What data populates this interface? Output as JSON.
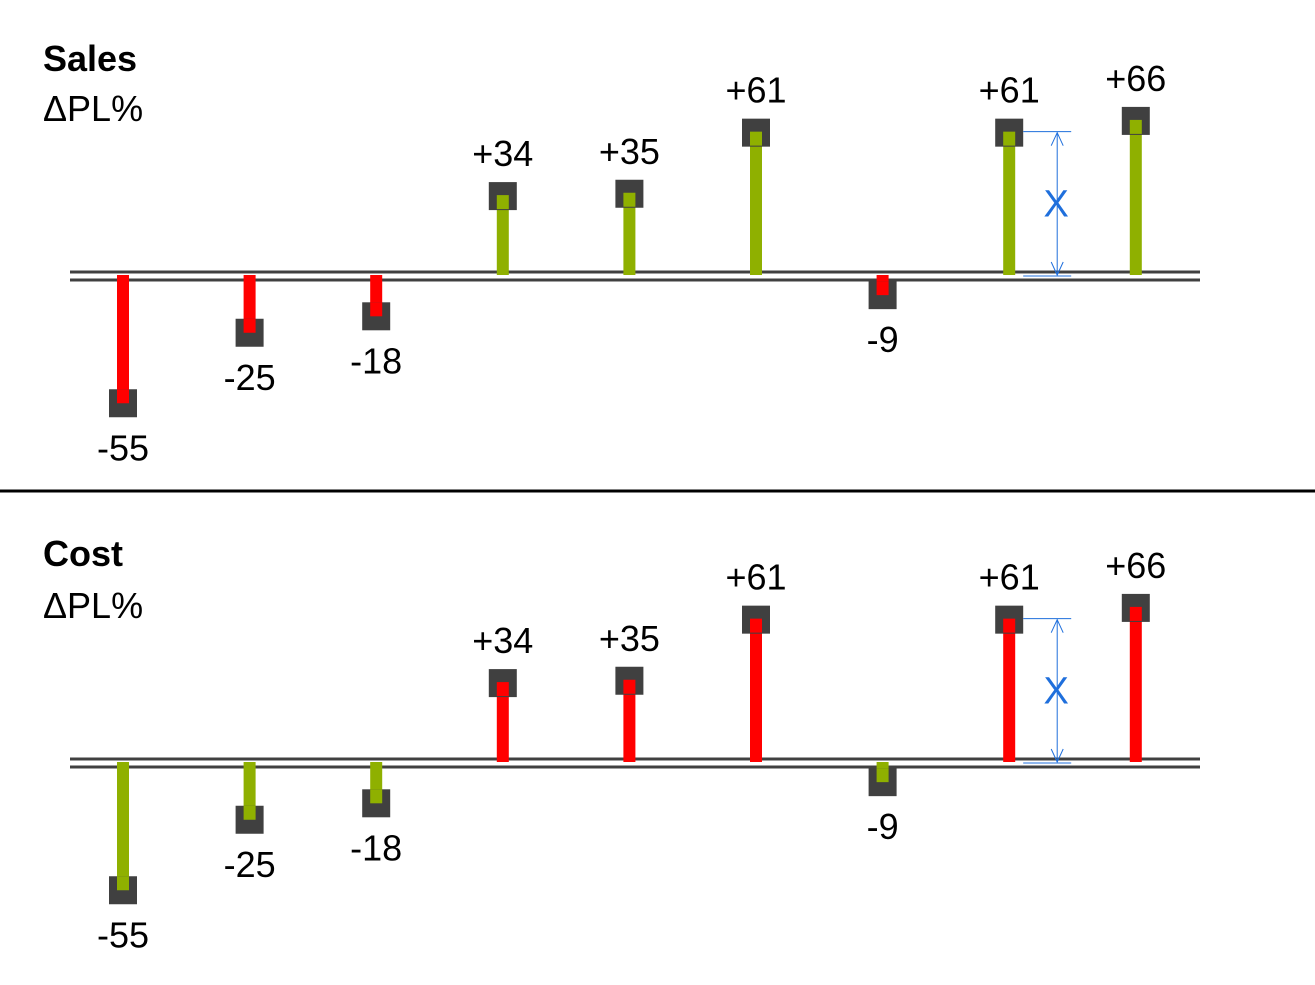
{
  "colors": {
    "good": "#8fb000",
    "bad": "#ff0000",
    "marker": "#404040",
    "axis": "#404040",
    "annotation": "#1f6fdc",
    "divider": "#000000"
  },
  "chart_data": [
    {
      "type": "bar",
      "title": "Sales",
      "subtitle": "ΔPL%",
      "values": [
        -55,
        -25,
        -18,
        34,
        35,
        61,
        -9,
        61,
        66
      ],
      "labels": [
        "-55",
        "-25",
        "-18",
        "+34",
        "+35",
        "+61",
        "-9",
        "+61",
        "+66"
      ],
      "positive_color": "#8fb000",
      "negative_color": "#ff0000",
      "annotation": {
        "text": "X",
        "bar_index": 7
      }
    },
    {
      "type": "bar",
      "title": "Cost",
      "subtitle": "ΔPL%",
      "values": [
        -55,
        -25,
        -18,
        34,
        35,
        61,
        -9,
        61,
        66
      ],
      "labels": [
        "-55",
        "-25",
        "-18",
        "+34",
        "+35",
        "+61",
        "-9",
        "+61",
        "+66"
      ],
      "positive_color": "#ff0000",
      "negative_color": "#8fb000",
      "annotation": {
        "text": "X",
        "bar_index": 7
      }
    }
  ]
}
